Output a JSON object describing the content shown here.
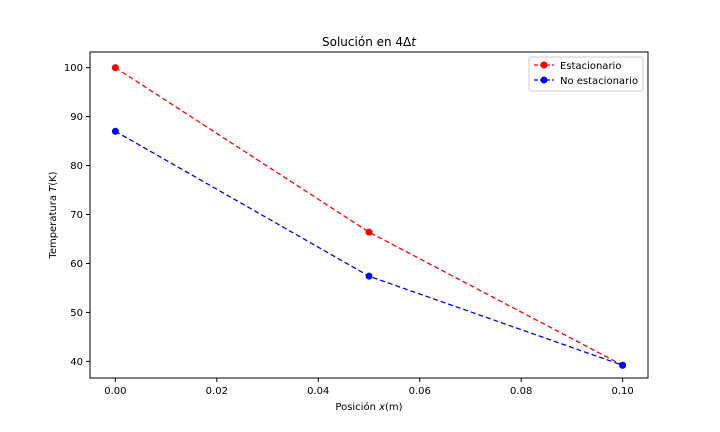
{
  "chart_data": {
    "type": "line",
    "title_main": "Solución en 4Δ",
    "title_italic": "t",
    "xlabel_main": "Posición ",
    "xlabel_italic": "x",
    "xlabel_unit": "(m)",
    "ylabel_main": "Temperatura ",
    "ylabel_italic": "T",
    "ylabel_unit": "(K)",
    "x": [
      0.0,
      0.05,
      0.1
    ],
    "xlim": [
      -0.005,
      0.105
    ],
    "ylim": [
      36.6,
      103.2
    ],
    "xticks": [
      0.0,
      0.02,
      0.04,
      0.06,
      0.08,
      0.1
    ],
    "xtick_labels": [
      "0.00",
      "0.02",
      "0.04",
      "0.06",
      "0.08",
      "0.10"
    ],
    "yticks": [
      40,
      50,
      60,
      70,
      80,
      90,
      100
    ],
    "ytick_labels": [
      "40",
      "50",
      "60",
      "70",
      "80",
      "90",
      "100"
    ],
    "grid": false,
    "legend_position": "top-right",
    "series": [
      {
        "name": "Estacionario",
        "color": "#ff0000",
        "style": "dashed",
        "marker": "circle",
        "values": [
          100.0,
          66.4,
          39.2
        ]
      },
      {
        "name": "No estacionario",
        "color": "#0000ff",
        "style": "dashed",
        "marker": "circle",
        "values": [
          87.0,
          57.4,
          39.2
        ]
      }
    ]
  }
}
